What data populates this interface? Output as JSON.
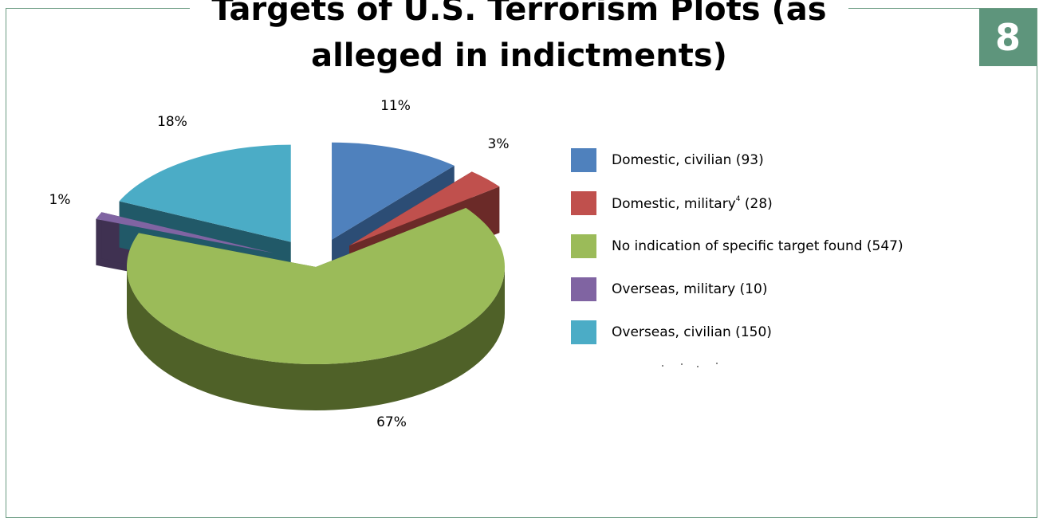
{
  "page": {
    "title": "Targets of U.S. Terrorism Plots (as alleged in indictments)",
    "badge": "8",
    "frame_color": "#6b9b82",
    "badge_color": "#5e957c"
  },
  "chart_data": {
    "type": "pie",
    "style": "3d-exploded",
    "title": "Targets of U.S. Terrorism Plots (as alleged in indictments)",
    "legend_position": "right",
    "slices": [
      {
        "label": "Domestic, civilian (93)",
        "value": 93,
        "percent": "11%",
        "color": "#4f81bd",
        "side_color": "#2c4d75"
      },
      {
        "label": "Domestic, military",
        "superscript": "4",
        "count": "(28)",
        "value": 28,
        "percent": "3%",
        "color": "#c0504d",
        "side_color": "#6b2a28"
      },
      {
        "label": "No indication of specific target found (547)",
        "value": 547,
        "percent": "67%",
        "color": "#9bbb59",
        "side_color": "#4f6128"
      },
      {
        "label": "Overseas, military (10)",
        "value": 10,
        "percent": "1%",
        "color": "#8064a2",
        "side_color": "#3f3151"
      },
      {
        "label": "Overseas, civilian (150)",
        "value": 150,
        "percent": "18%",
        "color": "#4bacc6",
        "side_color": "#215968"
      }
    ]
  }
}
